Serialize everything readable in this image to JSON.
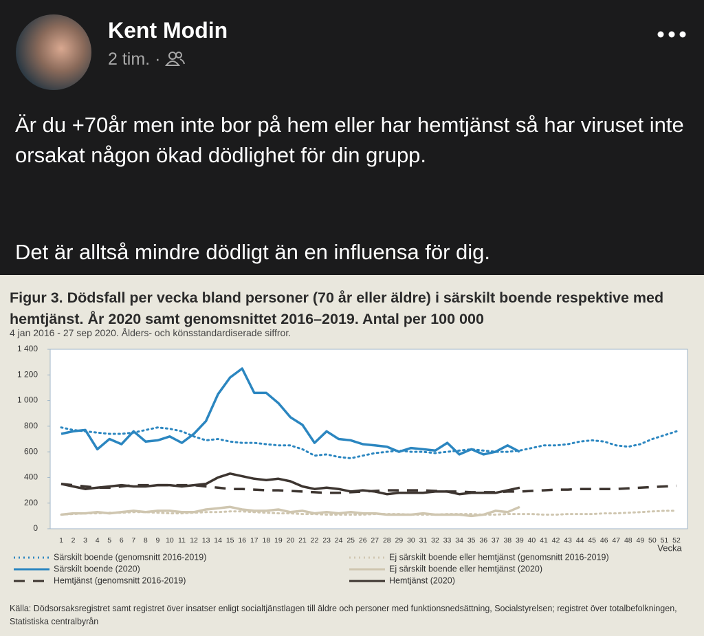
{
  "post": {
    "author": "Kent Modin",
    "time": "2 tim.",
    "separator": "·",
    "paragraphs": [
      "Är du +70år men inte bor på hem eller har hemtjänst så har viruset inte orsakat någon ökad dödlighet för din grupp.",
      "Det är alltså mindre dödligt än en influensa för dig."
    ]
  },
  "chart_data": {
    "type": "line",
    "title": "Figur 3. Dödsfall per vecka bland personer (70 år eller äldre)  i särskilt boende respektive med hemtjänst. År 2020 samt genomsnittet 2016–2019. Antal per 100 000",
    "subtitle": "4 jan 2016 - 27 sep 2020. Ålders- och könsstandardiserade siffror.",
    "x_label": "Vecka",
    "source": "Källa: Dödsorsaksregistret samt registret över insatser enligt socialtjänstlagen till äldre och personer med funktionsnedsättning, Socialstyrelsen; registret över totalbefolkningen, Statistiska centralbyrån",
    "categories": [
      1,
      2,
      3,
      4,
      5,
      6,
      7,
      8,
      9,
      10,
      11,
      12,
      13,
      14,
      15,
      16,
      17,
      18,
      19,
      20,
      21,
      22,
      23,
      24,
      25,
      26,
      27,
      28,
      29,
      30,
      31,
      32,
      33,
      34,
      35,
      36,
      37,
      38,
      39,
      40,
      41,
      42,
      43,
      44,
      45,
      46,
      47,
      48,
      49,
      50,
      51,
      52
    ],
    "ylim": [
      0,
      1400
    ],
    "yticks": [
      0,
      200,
      400,
      600,
      800,
      {
        "value": 1000,
        "label": "1 000"
      },
      {
        "value": 1200,
        "label": "1 200"
      },
      {
        "value": 1400,
        "label": "1 400"
      }
    ],
    "grid": false,
    "series": [
      {
        "name": "Särskilt boende (genomsnitt 2016-2019)",
        "color": "#2b86c0",
        "dash": "dotted",
        "values": [
          790,
          770,
          760,
          750,
          740,
          740,
          750,
          770,
          790,
          780,
          760,
          720,
          690,
          700,
          680,
          670,
          670,
          660,
          650,
          650,
          620,
          570,
          580,
          560,
          550,
          570,
          590,
          600,
          610,
          600,
          600,
          590,
          600,
          610,
          620,
          610,
          600,
          600,
          610,
          630,
          650,
          650,
          660,
          680,
          690,
          680,
          650,
          640,
          660,
          700,
          730,
          760
        ]
      },
      {
        "name": "Särskilt boende (2020)",
        "color": "#2b86c0",
        "dash": "solid",
        "values": [
          740,
          760,
          770,
          620,
          700,
          660,
          760,
          680,
          690,
          720,
          670,
          740,
          840,
          1050,
          1180,
          1250,
          1060,
          1060,
          980,
          870,
          810,
          670,
          760,
          700,
          690,
          660,
          650,
          640,
          600,
          630,
          620,
          610,
          670,
          580,
          620,
          580,
          600,
          650,
          600,
          null,
          null,
          null,
          null,
          null,
          null,
          null,
          null,
          null,
          null,
          null,
          null,
          null
        ]
      },
      {
        "name": "Hemtjänst (genomsnitt 2016-2019)",
        "color": "#3d3530",
        "dash": "dashed",
        "values": [
          350,
          340,
          330,
          320,
          320,
          330,
          340,
          340,
          340,
          340,
          340,
          340,
          330,
          320,
          310,
          310,
          305,
          300,
          300,
          295,
          290,
          285,
          280,
          280,
          285,
          290,
          295,
          300,
          300,
          300,
          300,
          295,
          290,
          290,
          285,
          285,
          285,
          290,
          290,
          295,
          300,
          305,
          305,
          310,
          310,
          310,
          310,
          315,
          320,
          325,
          330,
          335
        ]
      },
      {
        "name": "Ej särskilt boende eller hemtjänst (genomsnitt 2016-2019)",
        "color": "#cfc6b0",
        "dash": "dotted",
        "values": [
          110,
          115,
          120,
          120,
          125,
          125,
          130,
          130,
          125,
          120,
          120,
          125,
          130,
          130,
          135,
          135,
          130,
          125,
          120,
          120,
          115,
          115,
          110,
          110,
          110,
          110,
          115,
          115,
          115,
          110,
          110,
          110,
          115,
          115,
          115,
          110,
          110,
          115,
          115,
          115,
          110,
          110,
          115,
          115,
          115,
          120,
          120,
          125,
          130,
          135,
          140,
          140
        ]
      },
      {
        "name": "Ej särskilt boende eller hemtjänst (2020)",
        "color": "#cfc6b0",
        "dash": "solid",
        "values": [
          110,
          120,
          120,
          130,
          120,
          130,
          140,
          130,
          140,
          140,
          130,
          130,
          150,
          160,
          170,
          150,
          140,
          140,
          150,
          130,
          140,
          120,
          130,
          120,
          130,
          120,
          120,
          110,
          110,
          110,
          120,
          110,
          110,
          110,
          100,
          110,
          140,
          130,
          170,
          null,
          null,
          null,
          null,
          null,
          null,
          null,
          null,
          null,
          null,
          null,
          null,
          null
        ]
      },
      {
        "name": "Hemtjänst (2020)",
        "color": "#3d3530",
        "dash": "solid",
        "values": [
          350,
          330,
          310,
          320,
          330,
          340,
          330,
          330,
          340,
          340,
          330,
          340,
          350,
          400,
          430,
          410,
          390,
          380,
          390,
          370,
          330,
          310,
          320,
          310,
          290,
          300,
          290,
          270,
          280,
          280,
          280,
          290,
          290,
          270,
          280,
          280,
          280,
          300,
          320,
          null,
          null,
          null,
          null,
          null,
          null,
          null,
          null,
          null,
          null,
          null,
          null,
          null
        ]
      }
    ]
  }
}
